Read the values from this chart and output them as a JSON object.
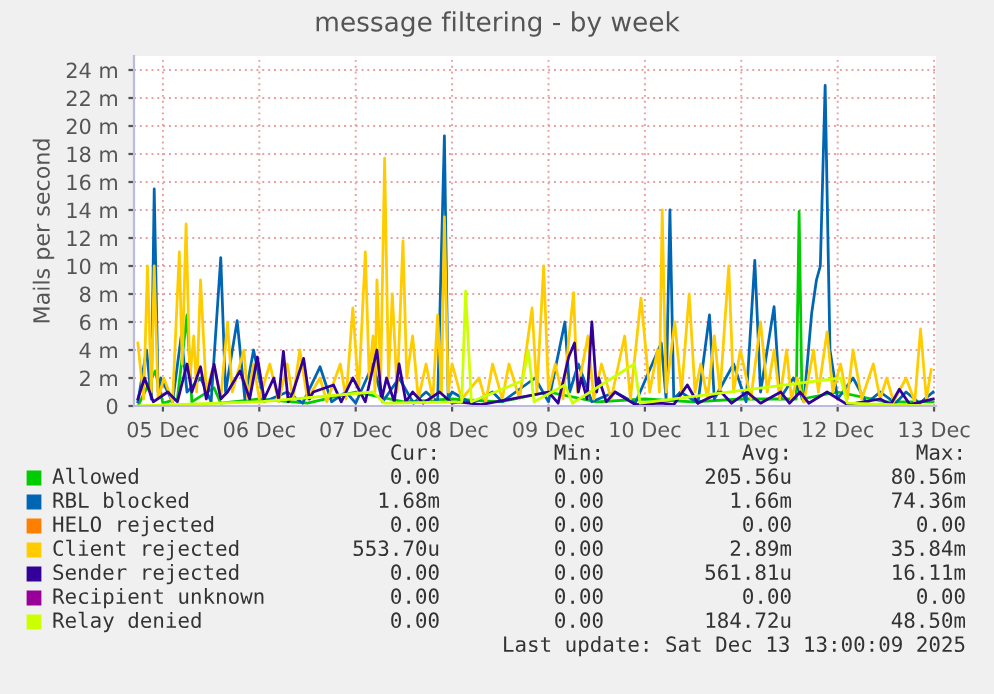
{
  "chart_data": {
    "type": "line",
    "title": "message filtering - by week",
    "ylabel": "Mails per second",
    "xlim": [
      "2025-12-04T16:48",
      "2025-12-13T00:29"
    ],
    "xticks": [
      {
        "value": "2025-12-05",
        "label": "05 Dec"
      },
      {
        "value": "2025-12-06",
        "label": "06 Dec"
      },
      {
        "value": "2025-12-07",
        "label": "07 Dec"
      },
      {
        "value": "2025-12-08",
        "label": "08 Dec"
      },
      {
        "value": "2025-12-09",
        "label": "09 Dec"
      },
      {
        "value": "2025-12-10",
        "label": "10 Dec"
      },
      {
        "value": "2025-12-11",
        "label": "11 Dec"
      },
      {
        "value": "2025-12-12",
        "label": "12 Dec"
      },
      {
        "value": "2025-12-13",
        "label": "13 Dec"
      }
    ],
    "ylim": [
      0,
      25
    ],
    "yticks": [
      0,
      {
        "value": 2,
        "label": "2 m"
      },
      {
        "value": 4,
        "label": "4 m"
      },
      {
        "value": 6,
        "label": "6 m"
      },
      {
        "value": 8,
        "label": "8 m"
      },
      {
        "value": 10,
        "label": "10 m"
      },
      {
        "value": 12,
        "label": "12 m"
      },
      {
        "value": 14,
        "label": "14 m"
      },
      {
        "value": 16,
        "label": "16 m"
      },
      {
        "value": 18,
        "label": "18 m"
      },
      {
        "value": 20,
        "label": "20 m"
      },
      {
        "value": 22,
        "label": "22 m"
      },
      {
        "value": 24,
        "label": "24 m"
      }
    ],
    "grid": true,
    "legend": "bottom",
    "marker": "none",
    "line_style": "solid",
    "series": [
      {
        "name": "Allowed",
        "color": "#00cc00",
        "x": [
          "2025-12-04T17:46",
          "2025-12-04T22:05",
          "2025-12-05T00:00",
          "2025-12-05T03:36",
          "2025-12-05T06:00",
          "2025-12-05T07:12",
          "2025-12-05T12:43",
          "2025-12-05T14:24",
          "2025-12-06T00:00",
          "2025-12-06T12:00",
          "2025-12-07T00:00",
          "2025-12-07T12:00",
          "2025-12-08T00:00",
          "2025-12-08T12:00",
          "2025-12-09T00:00",
          "2025-12-09T12:00",
          "2025-12-10T00:00",
          "2025-12-10T12:00",
          "2025-12-11T00:00",
          "2025-12-11T12:00",
          "2025-12-11T13:41",
          "2025-12-11T14:24",
          "2025-12-11T15:07",
          "2025-12-12T00:00",
          "2025-12-12T12:00",
          "2025-12-12T23:46"
        ],
        "values": [
          0,
          2.5,
          0.2,
          0.5,
          6.5,
          0.3,
          1.3,
          0.2,
          0.5,
          0.2,
          1,
          0.3,
          0.5,
          0.3,
          1,
          0.3,
          0.5,
          0.3,
          0.5,
          0.5,
          0.5,
          13.9,
          0.5,
          1,
          0.3,
          0.3
        ]
      },
      {
        "name": "RBL blocked",
        "color": "#0066b3",
        "x": [
          "2025-12-04T17:46",
          "2025-12-04T19:55",
          "2025-12-04T21:07",
          "2025-12-04T21:50",
          "2025-12-04T22:48",
          "2025-12-04T23:31",
          "2025-12-05T02:24",
          "2025-12-05T04:34",
          "2025-12-05T06:00",
          "2025-12-05T09:22",
          "2025-12-05T12:00",
          "2025-12-05T14:24",
          "2025-12-05T15:36",
          "2025-12-05T18:29",
          "2025-12-05T20:24",
          "2025-12-05T22:34",
          "2025-12-06T01:12",
          "2025-12-06T06:58",
          "2025-12-06T10:48",
          "2025-12-06T15:07",
          "2025-12-06T18:00",
          "2025-12-06T21:36",
          "2025-12-07T00:00",
          "2025-12-07T04:19",
          "2025-12-07T06:43",
          "2025-12-07T10:48",
          "2025-12-07T14:24",
          "2025-12-07T17:31",
          "2025-12-07T20:24",
          "2025-12-07T22:05",
          "2025-12-07T23:02",
          "2025-12-08T00:00",
          "2025-12-08T04:48",
          "2025-12-08T10:05",
          "2025-12-08T12:29",
          "2025-12-08T20:38",
          "2025-12-09T00:00",
          "2025-12-09T04:05",
          "2025-12-09T05:17",
          "2025-12-09T07:26",
          "2025-12-09T10:48",
          "2025-12-09T16:34",
          "2025-12-09T21:36",
          "2025-12-10T04:05",
          "2025-12-10T05:17",
          "2025-12-10T06:14",
          "2025-12-10T07:12",
          "2025-12-10T08:53",
          "2025-12-10T13:12",
          "2025-12-10T16:05",
          "2025-12-10T17:17",
          "2025-12-10T22:05",
          "2025-12-11T01:12",
          "2025-12-11T03:22",
          "2025-12-11T04:48",
          "2025-12-11T08:10",
          "2025-12-11T09:36",
          "2025-12-11T12:58",
          "2025-12-11T15:36",
          "2025-12-11T17:31",
          "2025-12-11T18:43",
          "2025-12-11T19:41",
          "2025-12-11T20:53",
          "2025-12-11T22:05",
          "2025-12-12T00:00",
          "2025-12-12T03:50",
          "2025-12-12T07:12",
          "2025-12-12T10:34",
          "2025-12-12T14:24",
          "2025-12-12T17:02",
          "2025-12-12T20:24",
          "2025-12-12T23:46"
        ],
        "values": [
          0.3,
          4,
          0.5,
          15.5,
          1,
          2,
          0.3,
          5,
          1,
          2,
          0.3,
          10.6,
          1,
          6.1,
          0.5,
          4,
          0.3,
          1,
          0.2,
          2.8,
          0.3,
          1,
          0.2,
          3,
          0.3,
          2,
          0.2,
          1,
          0.3,
          19.3,
          0.5,
          1,
          0.2,
          1,
          0.3,
          2,
          0.3,
          6,
          1,
          3,
          0.3,
          1,
          0.2,
          4.5,
          0.5,
          14,
          0.5,
          1,
          0.2,
          6.5,
          0.5,
          3,
          0.3,
          10.4,
          1,
          7.1,
          0.5,
          2,
          0.3,
          6.6,
          9,
          10,
          22.9,
          4,
          0.5,
          2,
          0.2,
          1,
          0.2,
          1,
          0.2,
          1
        ]
      },
      {
        "name": "HELO rejected",
        "color": "#ff8000"
      },
      {
        "name": "Client rejected",
        "color": "#ffcc00",
        "x": [
          "2025-12-04T17:46",
          "2025-12-04T19:12",
          "2025-12-04T20:10",
          "2025-12-04T21:07",
          "2025-12-04T21:50",
          "2025-12-04T22:48",
          "2025-12-05T00:14",
          "2025-12-05T02:24",
          "2025-12-05T04:05",
          "2025-12-05T04:48",
          "2025-12-05T05:46",
          "2025-12-05T06:43",
          "2025-12-05T07:41",
          "2025-12-05T08:24",
          "2025-12-05T09:22",
          "2025-12-05T10:48",
          "2025-12-05T12:43",
          "2025-12-05T14:24",
          "2025-12-05T16:05",
          "2025-12-05T17:17",
          "2025-12-05T20:10",
          "2025-12-05T21:07",
          "2025-12-05T22:34",
          "2025-12-06T00:00",
          "2025-12-06T02:38",
          "2025-12-06T04:48",
          "2025-12-06T06:58",
          "2025-12-06T08:24",
          "2025-12-06T10:05",
          "2025-12-06T12:00",
          "2025-12-06T15:07",
          "2025-12-06T16:48",
          "2025-12-06T20:10",
          "2025-12-06T21:36",
          "2025-12-06T23:17",
          "2025-12-07T00:43",
          "2025-12-07T02:24",
          "2025-12-07T03:22",
          "2025-12-07T04:19",
          "2025-12-07T04:48",
          "2025-12-07T05:17",
          "2025-12-07T06:14",
          "2025-12-07T07:12",
          "2025-12-07T08:10",
          "2025-12-07T09:07",
          "2025-12-07T10:19",
          "2025-12-07T11:46",
          "2025-12-07T12:43",
          "2025-12-07T14:10",
          "2025-12-07T15:36",
          "2025-12-07T17:31",
          "2025-12-07T19:12",
          "2025-12-07T20:24",
          "2025-12-07T21:22",
          "2025-12-07T22:05",
          "2025-12-07T23:02",
          "2025-12-08T00:00",
          "2025-12-08T02:24",
          "2025-12-08T06:43",
          "2025-12-08T08:24",
          "2025-12-08T10:05",
          "2025-12-08T12:29",
          "2025-12-08T14:10",
          "2025-12-08T16:48",
          "2025-12-08T19:55",
          "2025-12-08T21:07",
          "2025-12-08T22:48",
          "2025-12-09T00:00",
          "2025-12-09T01:41",
          "2025-12-09T03:36",
          "2025-12-09T06:14",
          "2025-12-09T07:12",
          "2025-12-09T09:50",
          "2025-12-09T11:17",
          "2025-12-09T13:12",
          "2025-12-09T15:36",
          "2025-12-09T18:58",
          "2025-12-09T20:24",
          "2025-12-09T23:02",
          "2025-12-10T01:12",
          "2025-12-10T03:07",
          "2025-12-10T03:36",
          "2025-12-10T04:19",
          "2025-12-10T05:17",
          "2025-12-10T07:26",
          "2025-12-10T09:07",
          "2025-12-10T11:02",
          "2025-12-10T12:29",
          "2025-12-10T13:55",
          "2025-12-10T15:36",
          "2025-12-10T17:17",
          "2025-12-10T18:43",
          "2025-12-10T20:53",
          "2025-12-10T22:05",
          "2025-12-10T23:46",
          "2025-12-11T02:24",
          "2025-12-11T04:48",
          "2025-12-11T06:29",
          "2025-12-11T08:10",
          "2025-12-11T09:36",
          "2025-12-11T11:17",
          "2025-12-11T12:29",
          "2025-12-11T13:55",
          "2025-12-11T15:36",
          "2025-12-11T18:00",
          "2025-12-11T19:12",
          "2025-12-11T21:22",
          "2025-12-11T22:48",
          "2025-12-12T00:43",
          "2025-12-12T02:24",
          "2025-12-12T03:50",
          "2025-12-12T06:00",
          "2025-12-12T08:53",
          "2025-12-12T10:34",
          "2025-12-12T12:14",
          "2025-12-12T13:55",
          "2025-12-12T17:02",
          "2025-12-12T19:12",
          "2025-12-12T20:38",
          "2025-12-12T22:05",
          "2025-12-12T23:17"
        ],
        "values": [
          4.5,
          0.5,
          10,
          1,
          10,
          0.5,
          2,
          0.3,
          11,
          3,
          13,
          2,
          5,
          1,
          9,
          1,
          3,
          0.5,
          6,
          1,
          4,
          0.5,
          3,
          0.5,
          3,
          0.3,
          3,
          0.5,
          4,
          0.5,
          2,
          0.3,
          3,
          0.5,
          7,
          1,
          11,
          2,
          5,
          1,
          9,
          2,
          17.7,
          2,
          8,
          1,
          11.8,
          2,
          5,
          0.5,
          3,
          0.5,
          6.5,
          1,
          13.5,
          1,
          3,
          0.5,
          2,
          0.3,
          3,
          0.5,
          3,
          0.5,
          7,
          1,
          10,
          1,
          3,
          0.5,
          8.1,
          1,
          5,
          0.5,
          3,
          0.5,
          5,
          0.5,
          7.7,
          1,
          4,
          1,
          14,
          1,
          6,
          1,
          8,
          1,
          3,
          0.5,
          5,
          1,
          10,
          1,
          4,
          0.5,
          6,
          1,
          4,
          0.5,
          4,
          0.5,
          2,
          0.3,
          4,
          1,
          5.3,
          1,
          3,
          0.5,
          4,
          0.5,
          3,
          0.5,
          2,
          0.3,
          2,
          0.3,
          5.5,
          0.5,
          2.6
        ]
      },
      {
        "name": "Sender rejected",
        "color": "#330099",
        "x": [
          "2025-12-04T17:46",
          "2025-12-04T19:26",
          "2025-12-04T21:36",
          "2025-12-05T01:12",
          "2025-12-05T03:36",
          "2025-12-05T06:00",
          "2025-12-05T07:12",
          "2025-12-05T09:22",
          "2025-12-05T10:48",
          "2025-12-05T12:43",
          "2025-12-05T14:24",
          "2025-12-05T16:05",
          "2025-12-05T19:12",
          "2025-12-05T21:36",
          "2025-12-05T23:31",
          "2025-12-06T01:12",
          "2025-12-06T03:36",
          "2025-12-06T04:48",
          "2025-12-06T06:00",
          "2025-12-06T07:12",
          "2025-12-06T08:24",
          "2025-12-06T11:02",
          "2025-12-06T12:29",
          "2025-12-06T13:26",
          "2025-12-06T18:29",
          "2025-12-06T20:24",
          "2025-12-06T23:17",
          "2025-12-07T02:24",
          "2025-12-07T05:17",
          "2025-12-07T06:29",
          "2025-12-07T07:41",
          "2025-12-07T09:36",
          "2025-12-07T10:48",
          "2025-12-07T12:29",
          "2025-12-07T14:10",
          "2025-12-07T16:48",
          "2025-12-07T20:53",
          "2025-12-08T00:00",
          "2025-12-08T01:41",
          "2025-12-08T07:12",
          "2025-12-09T00:00",
          "2025-12-09T02:24",
          "2025-12-09T05:02",
          "2025-12-09T06:29",
          "2025-12-09T07:26",
          "2025-12-09T08:10",
          "2025-12-09T09:36",
          "2025-12-09T10:48",
          "2025-12-09T12:00",
          "2025-12-09T12:29",
          "2025-12-09T14:24",
          "2025-12-09T16:34",
          "2025-12-09T21:36",
          "2025-12-10T04:05",
          "2025-12-10T07:12",
          "2025-12-10T10:34",
          "2025-12-10T13:12",
          "2025-12-10T18:58",
          "2025-12-10T21:36",
          "2025-12-11T01:26",
          "2025-12-11T04:48",
          "2025-12-11T09:50",
          "2025-12-11T12:00",
          "2025-12-11T14:38",
          "2025-12-11T16:48",
          "2025-12-11T21:22",
          "2025-12-12T02:24",
          "2025-12-12T10:34",
          "2025-12-12T13:12",
          "2025-12-12T15:22",
          "2025-12-12T18:00",
          "2025-12-12T23:46"
        ],
        "values": [
          0.5,
          2,
          0.3,
          1,
          0.3,
          3,
          1,
          2.8,
          0.5,
          3,
          0.5,
          1,
          2.5,
          0.5,
          3.5,
          0.5,
          2,
          0.5,
          3.9,
          0.3,
          1,
          3.4,
          0.5,
          1,
          1.5,
          0.3,
          2,
          0.3,
          4,
          0.5,
          2,
          0.3,
          3,
          0.3,
          1,
          0.2,
          1,
          0.2,
          0.3,
          0.1,
          1,
          0.2,
          3.5,
          4.5,
          1,
          2,
          0.5,
          6,
          1,
          2,
          0.3,
          1,
          0.1,
          0.2,
          0.1,
          1.5,
          0.2,
          1,
          0.2,
          1,
          0.2,
          1,
          0.2,
          1,
          0.2,
          1,
          0.1,
          0.5,
          0.1,
          1.2,
          0.1,
          0.5
        ]
      },
      {
        "name": "Recipient unknown",
        "color": "#990099"
      },
      {
        "name": "Relay denied",
        "color": "#ccff00",
        "x": [
          "2025-12-04T17:46",
          "2025-12-06T00:00",
          "2025-12-07T04:19",
          "2025-12-07T07:12",
          "2025-12-08T02:24",
          "2025-12-08T03:22",
          "2025-12-08T04:48",
          "2025-12-08T17:31",
          "2025-12-08T18:58",
          "2025-12-08T20:24",
          "2025-12-09T04:05",
          "2025-12-09T06:00",
          "2025-12-09T21:22",
          "2025-12-09T22:48",
          "2025-12-12T00:43",
          "2025-12-12T02:24",
          "2025-12-12T23:46"
        ],
        "values": [
          0,
          0.3,
          1,
          0.2,
          0.3,
          8.2,
          0.3,
          1.8,
          4,
          0.3,
          1.5,
          0.2,
          3,
          0.2,
          2,
          0.2,
          0
        ]
      }
    ],
    "annotations": [
      "Cur:",
      "Min:",
      "Avg:",
      "Max:",
      "0.00",
      "0.00",
      "205.56u",
      "80.56m",
      "1.68m",
      "0.00",
      "1.66m",
      "74.36m",
      "0.00",
      "0.00",
      "0.00",
      "0.00",
      "553.70u",
      "0.00",
      "2.89m",
      "35.84m",
      "0.00",
      "0.00",
      "561.81u",
      "16.11m",
      "0.00",
      "0.00",
      "0.00",
      "0.00",
      "0.00",
      "0.00",
      "184.72u",
      "48.50m",
      "Last update: Sat Dec 13 13:00:09 2025"
    ]
  }
}
